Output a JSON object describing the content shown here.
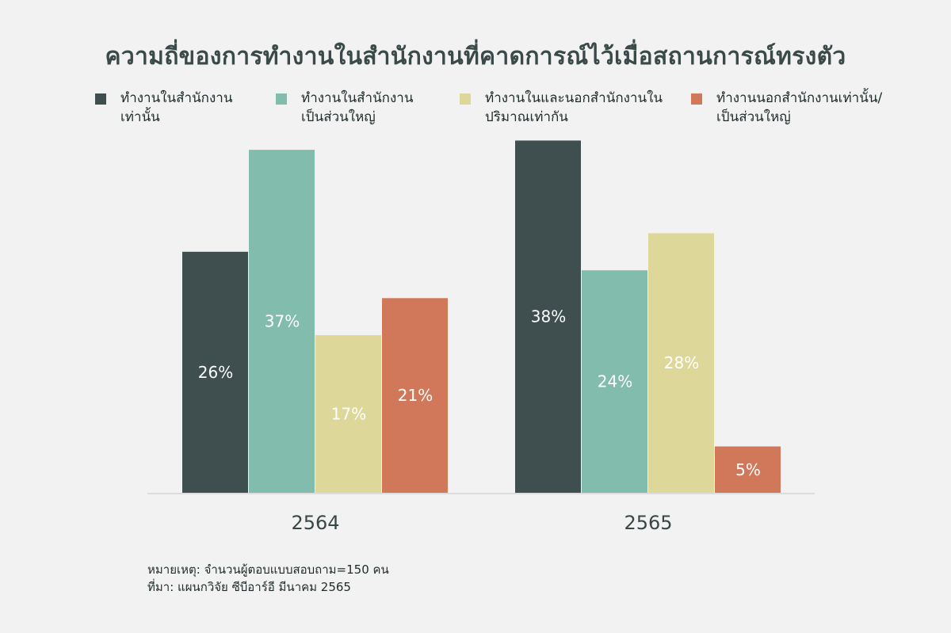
{
  "title": "ความถี่ของการทำงานในสำนักงานที่คาดการณ์ไว้เมื่อสถานการณ์ทรงตัว",
  "legend": [
    {
      "label": "ทำงานในสำนักงาน\nเท่านั้น",
      "color": "#3f4f50"
    },
    {
      "label": "ทำงานในสำนักงาน\nเป็นส่วนใหญ่",
      "color": "#82bcad"
    },
    {
      "label": "ทำงานในและนอกสำนักงานใน\nปริมาณเท่ากัน",
      "color": "#ddd899"
    },
    {
      "label": "ทำงานนอกสำนักงานเท่านั้น/\nเป็นส่วนใหญ่",
      "color": "#d1785a"
    }
  ],
  "chart_data": {
    "type": "bar",
    "categories": [
      "2564",
      "2565"
    ],
    "series": [
      {
        "name": "ทำงานในสำนักงานเท่านั้น",
        "values": [
          26,
          38
        ],
        "labels": [
          "26%",
          "38%"
        ],
        "color": "#3f4f50"
      },
      {
        "name": "ทำงานในสำนักงานเป็นส่วนใหญ่",
        "values": [
          37,
          24
        ],
        "labels": [
          "37%",
          "24%"
        ],
        "color": "#82bcad"
      },
      {
        "name": "ทำงานในและนอกสำนักงานในปริมาณเท่ากัน",
        "values": [
          17,
          28
        ],
        "labels": [
          "17%",
          "28%"
        ],
        "color": "#ddd899"
      },
      {
        "name": "ทำงานนอกสำนักงานเท่านั้น/เป็นส่วนใหญ่",
        "values": [
          21,
          5
        ],
        "labels": [
          "21%",
          "5%"
        ],
        "color": "#d1785a"
      }
    ],
    "ylim": [
      0,
      40
    ],
    "grid": false,
    "legend_position": "top"
  },
  "footnote": {
    "note": "หมายเหตุ: จำนวนผู้ตอบแบบสอบถาม=150 คน",
    "source": "ที่มา: แผนกวิจัย ซีบีอาร์อี มีนาคม 2565"
  }
}
